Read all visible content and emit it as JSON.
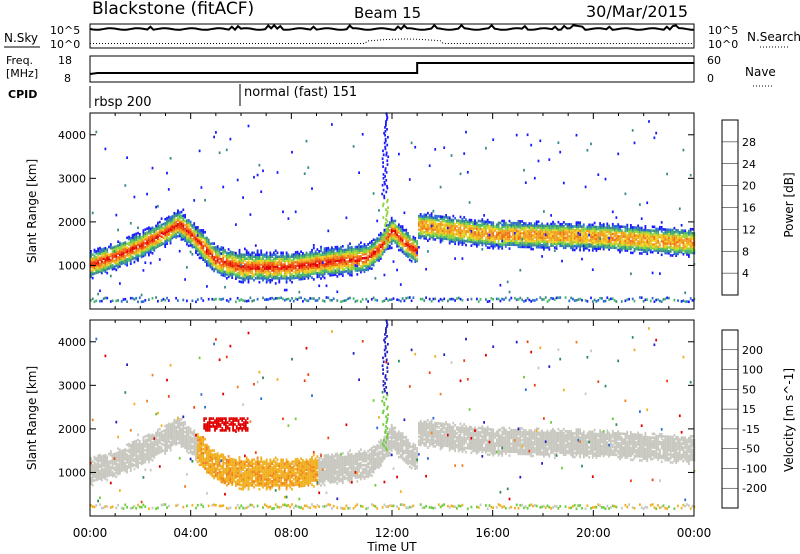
{
  "header": {
    "station": "Blackstone (fitACF)",
    "beam": "Beam 15",
    "date": "30/Mar/2015"
  },
  "top_panels": {
    "nsky_label": "N.Sky",
    "nsearch_label": "N.Search",
    "left_ticks": [
      "10^5",
      "10^0"
    ],
    "right_ticks": [
      "10^5",
      "10^0"
    ],
    "freq_label_line1": "Freq.",
    "freq_label_line2": "[MHz]",
    "freq_ticks": [
      "18",
      "8"
    ],
    "nave_label": "Nave",
    "nave_ticks": [
      "60",
      "0"
    ],
    "cpid_label": "CPID",
    "cpid_segments": [
      "rbsp 200",
      "normal (fast) 151"
    ]
  },
  "axes": {
    "ylabel": "Slant Range [km]",
    "xlabel": "Time UT",
    "yticks": [
      "1000",
      "2000",
      "3000",
      "4000"
    ],
    "xticks": [
      "00:00",
      "04:00",
      "08:00",
      "12:00",
      "16:00",
      "20:00",
      "00:00"
    ]
  },
  "power_scale": {
    "label": "Power [dB]",
    "ticks": [
      "4",
      "8",
      "12",
      "16",
      "20",
      "24",
      "28"
    ],
    "colors": [
      "#1a1aff",
      "#2a6bd4",
      "#3a8a8a",
      "#47b86b",
      "#8fd43a",
      "#f0d020",
      "#f0a020",
      "#f07018",
      "#f03a10",
      "#e00000"
    ]
  },
  "velocity_scale": {
    "label": "Velocity [m s^-1]",
    "ticks": [
      "200",
      "100",
      "50",
      "15",
      "-15",
      "-50",
      "-100",
      "-200"
    ],
    "colors": [
      "#2020c0",
      "#2a6bd4",
      "#2e8b57",
      "#6acd3a",
      "#c8c8c0",
      "#f0b020",
      "#f08020",
      "#f04010",
      "#e00000"
    ]
  },
  "chart_data": [
    {
      "type": "heatmap",
      "title": "",
      "ylabel": "Slant Range [km]",
      "xlabel": "Time UT",
      "colorbar_label": "Power [dB]",
      "xlim": [
        0,
        24
      ],
      "ylim": [
        0,
        4500
      ],
      "features": [
        {
          "name": "main band",
          "points": [
            [
              0,
              1000
            ],
            [
              1,
              1200
            ],
            [
              2,
              1450
            ],
            [
              3,
              1750
            ],
            [
              3.5,
              1950
            ],
            [
              4,
              1700
            ],
            [
              5,
              1100
            ],
            [
              6,
              950
            ],
            [
              8,
              950
            ],
            [
              10,
              1100
            ],
            [
              11,
              1150
            ],
            [
              11.5,
              1400
            ],
            [
              12,
              1800
            ],
            [
              12.5,
              1500
            ],
            [
              13,
              1300
            ]
          ]
        },
        {
          "name": "post-13 band",
          "points": [
            [
              13,
              1900
            ],
            [
              16,
              1700
            ],
            [
              20,
              1650
            ],
            [
              24,
              1500
            ]
          ]
        }
      ],
      "peak_power_db": 28
    },
    {
      "type": "heatmap",
      "title": "",
      "ylabel": "Slant Range [km]",
      "xlabel": "Time UT",
      "colorbar_label": "Velocity [m s^-1]",
      "xlim": [
        0,
        24
      ],
      "ylim": [
        0,
        4500
      ]
    }
  ]
}
